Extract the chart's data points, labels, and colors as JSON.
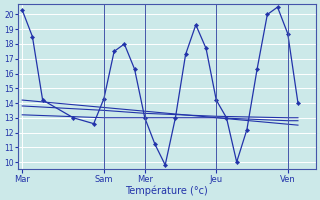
{
  "title": "Température (°c)",
  "background_color": "#cce9e9",
  "grid_color": "#ffffff",
  "line_color": "#2233aa",
  "ylim": [
    9.5,
    20.7
  ],
  "yticks": [
    10,
    11,
    12,
    13,
    14,
    15,
    16,
    17,
    18,
    19,
    20
  ],
  "day_labels": [
    "Mar",
    "Sam",
    "Mer",
    "Jeu",
    "Ven"
  ],
  "day_x": [
    0,
    96,
    144,
    228,
    312
  ],
  "xlim": [
    -5,
    345
  ],
  "series": [
    {
      "x": [
        0,
        12,
        24,
        60,
        84,
        96,
        108,
        120,
        132,
        144,
        156,
        168,
        180,
        192,
        204,
        216,
        228,
        240,
        252,
        264,
        276,
        288,
        300,
        312,
        324
      ],
      "y": [
        20.3,
        18.5,
        14.2,
        13.0,
        12.6,
        14.3,
        17.5,
        18.0,
        16.3,
        13.0,
        11.2,
        9.8,
        13.0,
        17.3,
        19.3,
        17.7,
        14.2,
        13.0,
        10.0,
        12.2,
        16.3,
        20.0,
        20.5,
        18.7,
        14.0
      ]
    },
    {
      "x": [
        0,
        324
      ],
      "y": [
        14.2,
        12.5
      ]
    },
    {
      "x": [
        0,
        96,
        144,
        228,
        312,
        324
      ],
      "y": [
        13.8,
        13.5,
        13.3,
        13.1,
        13.0,
        13.0
      ]
    },
    {
      "x": [
        0,
        96,
        144,
        228,
        312,
        324
      ],
      "y": [
        13.2,
        13.0,
        13.0,
        13.0,
        12.8,
        12.8
      ]
    },
    {
      "x": [
        0,
        12,
        24,
        60,
        84,
        96
      ],
      "y": [
        20.3,
        18.5,
        14.2,
        13.0,
        12.6,
        14.3
      ]
    }
  ]
}
